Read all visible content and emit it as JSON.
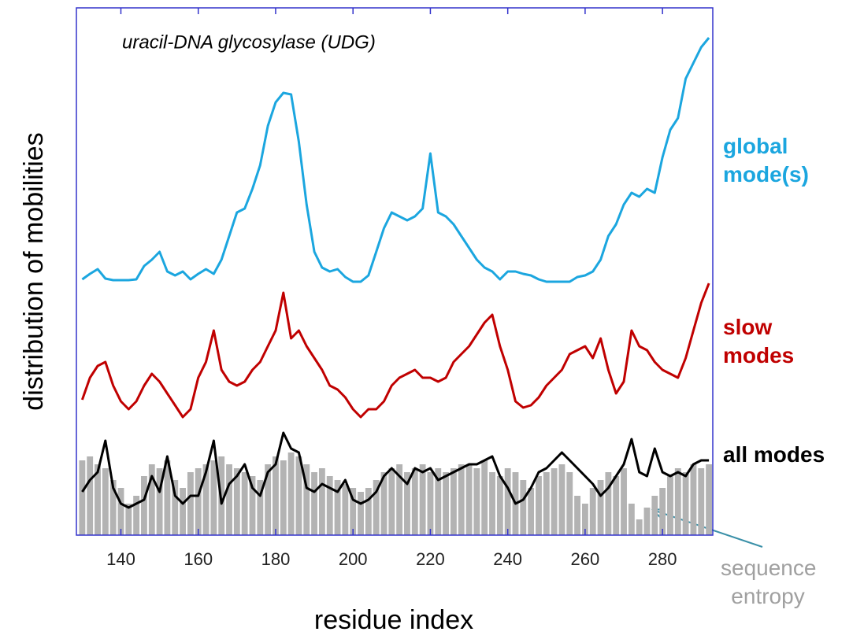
{
  "chart_data": {
    "type": "line",
    "title": "uracil-DNA glycosylase (UDG)",
    "x_label": "residue index",
    "y_label": "distribution of mobilities",
    "xlim": [
      128.5,
      293
    ],
    "ylim": [
      0,
      670
    ],
    "xticks": [
      140,
      160,
      180,
      200,
      220,
      240,
      260,
      280
    ],
    "x": [
      130,
      132,
      134,
      136,
      138,
      140,
      142,
      144,
      146,
      148,
      150,
      152,
      154,
      156,
      158,
      160,
      162,
      164,
      166,
      168,
      170,
      172,
      174,
      176,
      178,
      180,
      182,
      184,
      186,
      188,
      190,
      192,
      194,
      196,
      198,
      200,
      202,
      204,
      206,
      208,
      210,
      212,
      214,
      216,
      218,
      220,
      222,
      224,
      226,
      228,
      230,
      232,
      234,
      236,
      238,
      240,
      242,
      244,
      246,
      248,
      250,
      252,
      254,
      256,
      258,
      260,
      262,
      264,
      266,
      268,
      270,
      272,
      274,
      276,
      278,
      280,
      282,
      284,
      286,
      288,
      290,
      292
    ],
    "series": [
      {
        "name": "sequence entropy",
        "type": "bar",
        "color": "#b3b3b3",
        "values": [
          95,
          100,
          90,
          85,
          70,
          60,
          40,
          50,
          75,
          90,
          85,
          95,
          70,
          60,
          80,
          85,
          90,
          95,
          100,
          90,
          85,
          80,
          75,
          70,
          90,
          100,
          95,
          105,
          100,
          90,
          80,
          85,
          75,
          70,
          65,
          60,
          55,
          60,
          70,
          80,
          85,
          90,
          80,
          85,
          90,
          80,
          85,
          80,
          85,
          90,
          90,
          85,
          95,
          80,
          75,
          85,
          80,
          70,
          60,
          75,
          80,
          85,
          90,
          80,
          50,
          40,
          60,
          70,
          80,
          75,
          85,
          40,
          20,
          35,
          50,
          60,
          75,
          85,
          80,
          90,
          85,
          90
        ]
      },
      {
        "name": "global mode(s)",
        "color": "#1ba6df",
        "values": [
          325,
          332,
          338,
          326,
          324,
          324,
          324,
          325,
          342,
          350,
          360,
          335,
          330,
          335,
          325,
          332,
          338,
          332,
          350,
          380,
          410,
          415,
          440,
          470,
          520,
          550,
          562,
          560,
          500,
          420,
          360,
          340,
          335,
          338,
          328,
          322,
          322,
          330,
          360,
          390,
          410,
          405,
          400,
          405,
          415,
          485,
          410,
          405,
          395,
          380,
          365,
          350,
          340,
          335,
          325,
          335,
          335,
          332,
          330,
          325,
          322,
          322,
          322,
          322,
          328,
          330,
          335,
          350,
          380,
          395,
          420,
          435,
          430,
          440,
          435,
          480,
          515,
          530,
          580,
          600,
          620,
          632
        ]
      },
      {
        "name": "slow modes",
        "color": "#c00000",
        "values": [
          172,
          200,
          215,
          220,
          190,
          170,
          160,
          170,
          190,
          205,
          195,
          180,
          165,
          150,
          160,
          200,
          220,
          260,
          210,
          195,
          190,
          195,
          210,
          220,
          240,
          260,
          308,
          250,
          260,
          240,
          225,
          210,
          190,
          185,
          175,
          160,
          150,
          160,
          160,
          170,
          190,
          200,
          205,
          210,
          200,
          200,
          195,
          200,
          220,
          230,
          240,
          255,
          270,
          280,
          240,
          210,
          170,
          162,
          165,
          175,
          190,
          200,
          210,
          230,
          235,
          240,
          225,
          250,
          210,
          180,
          195,
          260,
          240,
          235,
          220,
          210,
          205,
          200,
          225,
          260,
          295,
          320
        ]
      },
      {
        "name": "all modes",
        "color": "#000000",
        "values": [
          55,
          70,
          80,
          120,
          60,
          40,
          35,
          40,
          45,
          75,
          55,
          100,
          50,
          40,
          50,
          50,
          80,
          120,
          40,
          65,
          75,
          90,
          60,
          50,
          80,
          90,
          130,
          110,
          105,
          60,
          55,
          65,
          60,
          55,
          70,
          45,
          40,
          45,
          55,
          75,
          85,
          75,
          65,
          85,
          80,
          85,
          70,
          75,
          80,
          85,
          90,
          90,
          95,
          100,
          75,
          60,
          40,
          45,
          60,
          80,
          85,
          95,
          105,
          95,
          85,
          75,
          65,
          50,
          60,
          75,
          90,
          122,
          80,
          75,
          110,
          80,
          75,
          80,
          75,
          90,
          95,
          95
        ]
      }
    ]
  }
}
